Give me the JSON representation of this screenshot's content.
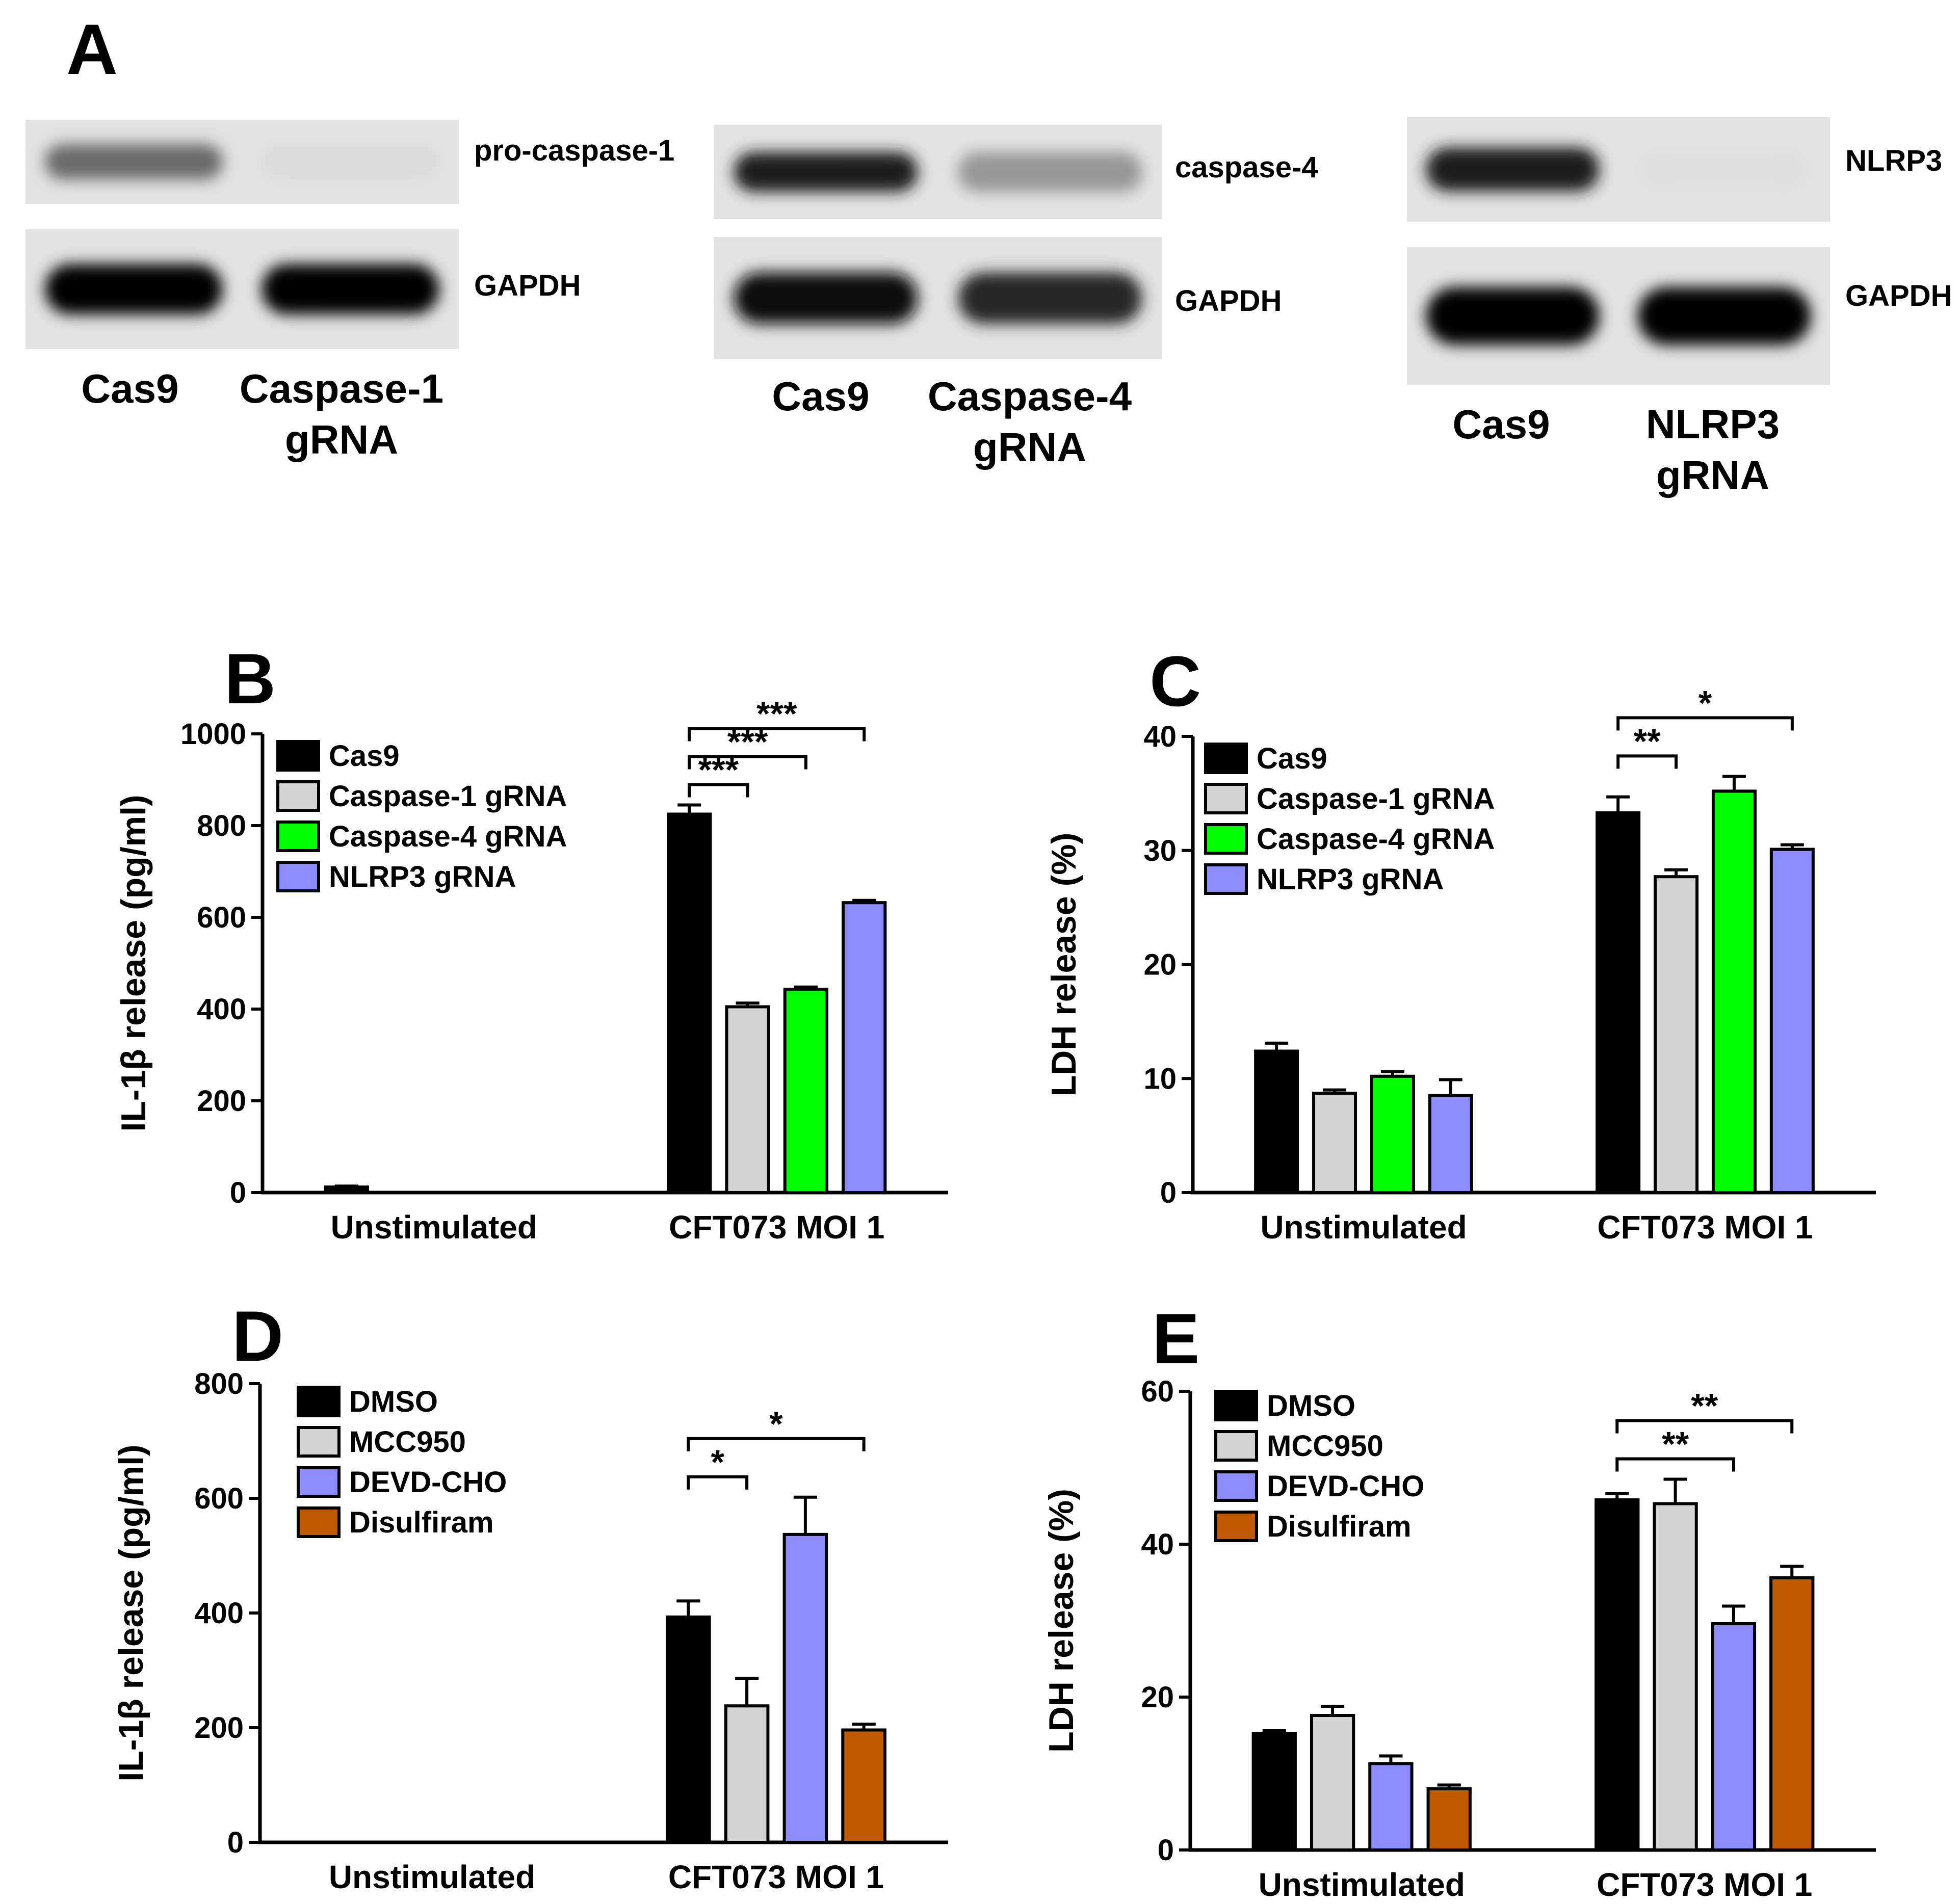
{
  "panel_a": {
    "letter": "A",
    "blots": [
      {
        "bands": [
          {
            "label": "pro-caspase-1",
            "intensity": [
              0.55,
              0.05
            ]
          },
          {
            "label": "GAPDH",
            "intensity": [
              1.0,
              1.0
            ]
          }
        ],
        "lanes": [
          "Cas9",
          "Caspase-1",
          "gRNA"
        ]
      },
      {
        "bands": [
          {
            "label": "caspase-4",
            "intensity": [
              0.9,
              0.35
            ]
          },
          {
            "label": "GAPDH",
            "intensity": [
              0.95,
              0.85
            ]
          }
        ],
        "lanes": [
          "Cas9",
          "Caspase-4",
          "gRNA"
        ]
      },
      {
        "bands": [
          {
            "label": "NLRP3",
            "intensity": [
              0.9,
              0.03
            ]
          },
          {
            "label": "GAPDH",
            "intensity": [
              1.0,
              1.0
            ]
          }
        ],
        "lanes": [
          "Cas9",
          "NLRP3",
          "gRNA"
        ]
      }
    ]
  },
  "chart_data": [
    {
      "panel": "B",
      "type": "bar",
      "ylabel": "IL-1β release (pg/ml)",
      "ylim": [
        0,
        1000
      ],
      "yticks": [
        0,
        200,
        400,
        600,
        800,
        1000
      ],
      "categories": [
        "Unstimulated",
        "CFT073 MOI 1"
      ],
      "series": [
        {
          "name": "Cas9",
          "color": "#000000",
          "values": [
            12,
            825
          ],
          "errors": [
            2,
            20
          ]
        },
        {
          "name": "Caspase-1 gRNA",
          "color": "#d3d3d3",
          "values": [
            0,
            405
          ],
          "errors": [
            0,
            8
          ]
        },
        {
          "name": "Caspase-4 gRNA",
          "color": "#00ff00",
          "values": [
            0,
            443
          ],
          "errors": [
            0,
            5
          ]
        },
        {
          "name": "NLRP3 gRNA",
          "color": "#8c8cff",
          "values": [
            0,
            632
          ],
          "errors": [
            0,
            5
          ]
        }
      ],
      "significance": [
        {
          "label": "***",
          "group": 1,
          "from": 0,
          "to": 1
        },
        {
          "label": "***",
          "group": 1,
          "from": 0,
          "to": 2
        },
        {
          "label": "***",
          "group": 1,
          "from": 0,
          "to": 3
        }
      ]
    },
    {
      "panel": "C",
      "type": "bar",
      "ylabel": "LDH release (%)",
      "ylim": [
        0,
        40
      ],
      "yticks": [
        0,
        10,
        20,
        30,
        40
      ],
      "categories": [
        "Unstimulated",
        "CFT073 MOI 1"
      ],
      "series": [
        {
          "name": "Cas9",
          "color": "#000000",
          "values": [
            12.4,
            33.3
          ],
          "errors": [
            0.7,
            1.4
          ]
        },
        {
          "name": "Caspase-1 gRNA",
          "color": "#d3d3d3",
          "values": [
            8.7,
            27.7
          ],
          "errors": [
            0.3,
            0.6
          ]
        },
        {
          "name": "Caspase-4 gRNA",
          "color": "#00ff00",
          "values": [
            10.2,
            35.2
          ],
          "errors": [
            0.4,
            1.3
          ]
        },
        {
          "name": "NLRP3 gRNA",
          "color": "#8c8cff",
          "values": [
            8.5,
            30.1
          ],
          "errors": [
            1.4,
            0.4
          ]
        }
      ],
      "significance": [
        {
          "label": "**",
          "group": 1,
          "from": 0,
          "to": 1
        },
        {
          "label": "*",
          "group": 1,
          "from": 0,
          "to": 3
        }
      ]
    },
    {
      "panel": "D",
      "type": "bar",
      "ylabel": "IL-1β release (pg/ml)",
      "ylim": [
        0,
        800
      ],
      "yticks": [
        0,
        200,
        400,
        600,
        800
      ],
      "categories": [
        "Unstimulated",
        "CFT073 MOI 1"
      ],
      "series": [
        {
          "name": "DMSO",
          "color": "#000000",
          "values": [
            0,
            393
          ],
          "errors": [
            0,
            28
          ]
        },
        {
          "name": "MCC950",
          "color": "#d3d3d3",
          "values": [
            0,
            238
          ],
          "errors": [
            0,
            48
          ]
        },
        {
          "name": "DEVD-CHO",
          "color": "#8c8cff",
          "values": [
            0,
            537
          ],
          "errors": [
            0,
            65
          ]
        },
        {
          "name": "Disulfiram",
          "color": "#c05a00",
          "values": [
            0,
            196
          ],
          "errors": [
            0,
            10
          ]
        }
      ],
      "significance": [
        {
          "label": "*",
          "group": 1,
          "from": 0,
          "to": 1
        },
        {
          "label": "*",
          "group": 1,
          "from": 0,
          "to": 3
        }
      ]
    },
    {
      "panel": "E",
      "type": "bar",
      "ylabel": "LDH release (%)",
      "ylim": [
        0,
        60
      ],
      "yticks": [
        0,
        20,
        40,
        60
      ],
      "categories": [
        "Unstimulated",
        "CFT073 MOI 1"
      ],
      "series": [
        {
          "name": "DMSO",
          "color": "#000000",
          "values": [
            15.2,
            45.8
          ],
          "errors": [
            0.4,
            0.8
          ]
        },
        {
          "name": "MCC950",
          "color": "#d3d3d3",
          "values": [
            17.6,
            45.3
          ],
          "errors": [
            1.2,
            3.2
          ]
        },
        {
          "name": "DEVD-CHO",
          "color": "#8c8cff",
          "values": [
            11.3,
            29.6
          ],
          "errors": [
            1.0,
            2.3
          ]
        },
        {
          "name": "Disulfiram",
          "color": "#c05a00",
          "values": [
            8.0,
            35.6
          ],
          "errors": [
            0.5,
            1.5
          ]
        }
      ],
      "significance": [
        {
          "label": "**",
          "group": 1,
          "from": 0,
          "to": 2
        },
        {
          "label": "**",
          "group": 1,
          "from": 0,
          "to": 3
        }
      ]
    }
  ]
}
